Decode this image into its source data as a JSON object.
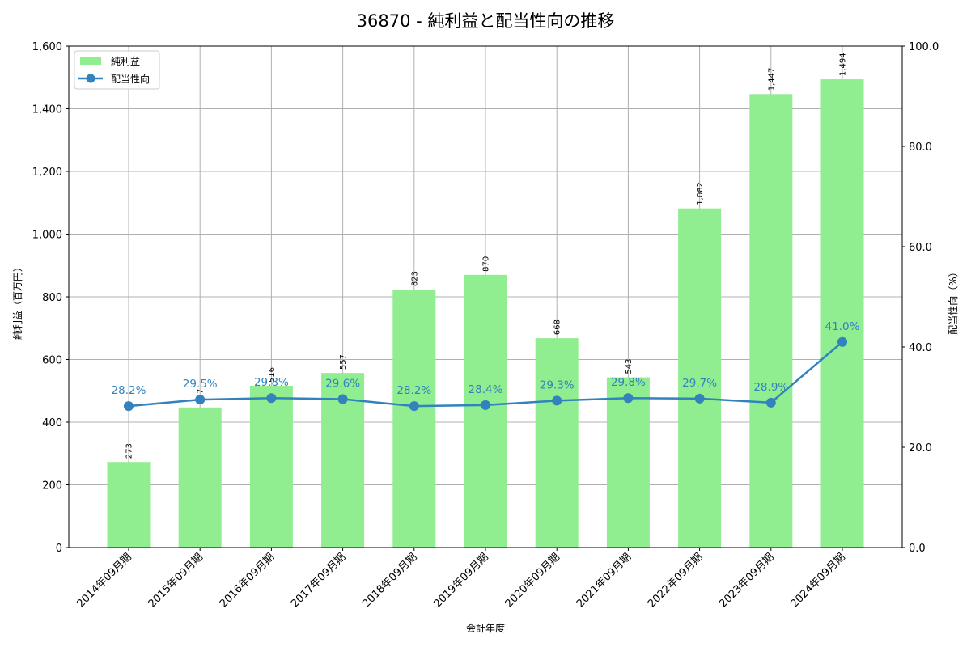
{
  "chart_data": {
    "type": "bar+line",
    "title": "36870 - 純利益と配当性向の推移",
    "xlabel": "会計年度",
    "ylabel": "純利益（百万円）",
    "y2label": "配当性向（%）",
    "ylim": [
      0,
      1600
    ],
    "y2lim": [
      0,
      100
    ],
    "yticks": [
      0,
      200,
      400,
      600,
      800,
      1000,
      1200,
      1400,
      1600
    ],
    "ytick_labels": [
      "0",
      "200",
      "400",
      "600",
      "800",
      "1,000",
      "1,200",
      "1,400",
      "1,600"
    ],
    "y2ticks": [
      0,
      20,
      40,
      60,
      80,
      100
    ],
    "y2tick_labels": [
      "0.0",
      "20.0",
      "40.0",
      "60.0",
      "80.0",
      "100.0"
    ],
    "grid": true,
    "legend_position": "upper left",
    "categories": [
      "2014年09月期",
      "2015年09月期",
      "2016年09月期",
      "2017年09月期",
      "2018年09月期",
      "2019年09月期",
      "2020年09月期",
      "2021年09月期",
      "2022年09月期",
      "2023年09月期",
      "2024年09月期"
    ],
    "series": [
      {
        "name": "純利益",
        "type": "bar",
        "axis": "left",
        "color": "#90ee90",
        "values": [
          273,
          447,
          516,
          557,
          823,
          870,
          668,
          543,
          1082,
          1447,
          1494
        ],
        "labels": [
          "273",
          "447",
          "516",
          "557",
          "823",
          "870",
          "668",
          "543",
          "1,082",
          "1,447",
          "1,494"
        ]
      },
      {
        "name": "配当性向",
        "type": "line",
        "axis": "right",
        "color": "#3182bd",
        "values": [
          28.2,
          29.5,
          29.8,
          29.6,
          28.2,
          28.4,
          29.3,
          29.8,
          29.7,
          28.9,
          41.0
        ],
        "labels": [
          "28.2%",
          "29.5%",
          "29.8%",
          "29.6%",
          "28.2%",
          "28.4%",
          "29.3%",
          "29.8%",
          "29.7%",
          "28.9%",
          "41.0%"
        ]
      }
    ]
  }
}
